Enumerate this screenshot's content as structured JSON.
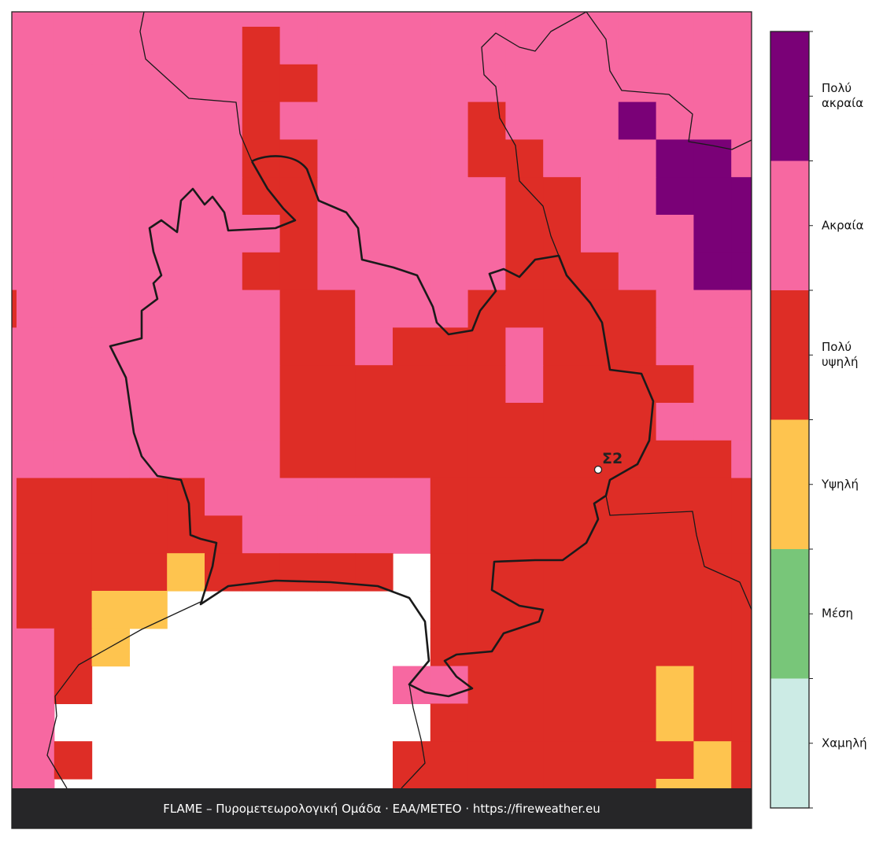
{
  "legend": {
    "items": [
      {
        "label": "Πολύ ακραία",
        "color": "#7a0177"
      },
      {
        "label": "Ακραία",
        "color": "#f768a1"
      },
      {
        "label": "Πολύ υψηλή",
        "color": "#de2d26"
      },
      {
        "label": "Υψηλή",
        "color": "#fec44f"
      },
      {
        "label": "Μέση",
        "color": "#78c679"
      },
      {
        "label": "Χαμηλή",
        "color": "#ccebe5"
      }
    ]
  },
  "station": {
    "label": "Σ2"
  },
  "footer": {
    "text": "FLAME – Πυρομετεωρολογική Ομάδα · ΕΑΑ/METEO · https://fireweather.eu"
  }
}
